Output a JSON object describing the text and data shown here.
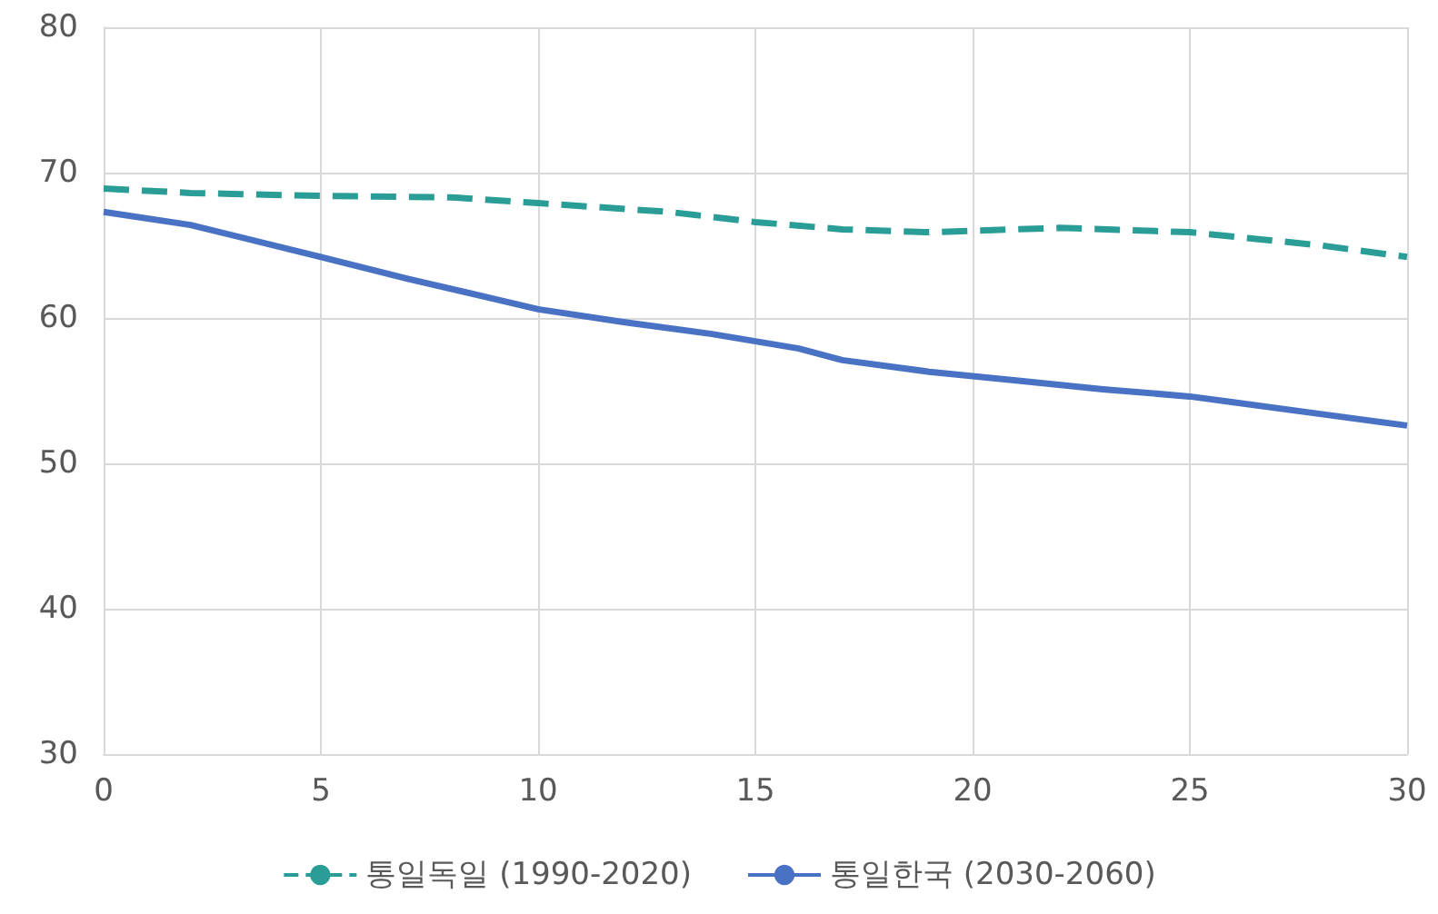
{
  "chart_data": {
    "type": "line",
    "xlim": [
      0,
      30
    ],
    "xticks": [
      0,
      5,
      10,
      15,
      20,
      25,
      30
    ],
    "ylim": [
      30,
      80
    ],
    "yticks": [
      30,
      40,
      50,
      60,
      70,
      80
    ],
    "grid": true,
    "legend": "bottom",
    "marker": "none",
    "series": [
      {
        "name": "통일독일 (1990-2020)",
        "color": "#2a9d96",
        "line_style": "dashed",
        "x": [
          0,
          2,
          5,
          8,
          10,
          13,
          15,
          17,
          19,
          22,
          25,
          28,
          30
        ],
        "values": [
          68.9,
          68.6,
          68.4,
          68.3,
          67.9,
          67.3,
          66.6,
          66.1,
          65.9,
          66.2,
          65.9,
          65.0,
          64.2
        ]
      },
      {
        "name": "통일한국 (2030-2060)",
        "color": "#4a72c4",
        "line_style": "solid",
        "x": [
          0,
          2,
          5,
          7,
          9,
          10,
          12,
          14,
          16,
          17,
          19,
          21,
          23,
          25,
          26,
          28,
          30
        ],
        "values": [
          67.3,
          66.4,
          64.2,
          62.7,
          61.3,
          60.6,
          59.7,
          58.9,
          57.9,
          57.1,
          56.3,
          55.7,
          55.1,
          54.6,
          54.2,
          53.4,
          52.6
        ]
      }
    ]
  }
}
